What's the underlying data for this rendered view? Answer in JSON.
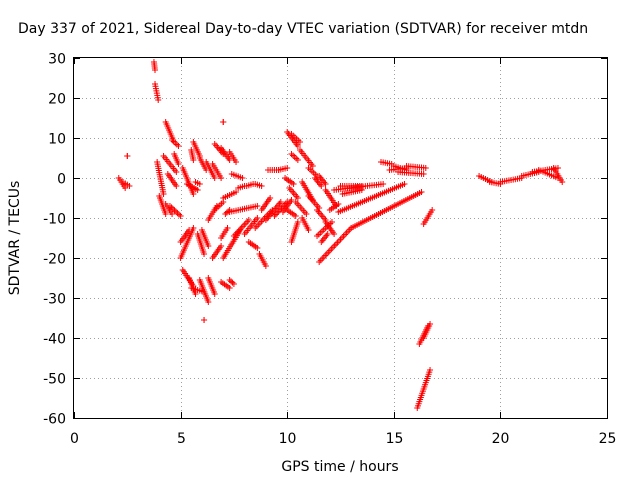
{
  "chart_data": {
    "type": "scatter",
    "title": "Day 337 of 2021, Sidereal Day-to-day VTEC variation (SDTVAR) for receiver mtdn",
    "xlabel": "GPS time / hours",
    "ylabel": "SDTVAR / TECUs",
    "xlim": [
      0,
      25
    ],
    "ylim": [
      -60,
      30
    ],
    "xticks": [
      "0",
      "5",
      "10",
      "15",
      "20",
      "25"
    ],
    "yticks": [
      "30",
      "20",
      "10",
      "0",
      "-10",
      "-20",
      "-30",
      "-40",
      "-50",
      "-60"
    ],
    "grid": true,
    "marker": "+",
    "color": "#ff0000",
    "tracks": [
      [
        [
          2.1,
          0.0
        ],
        [
          2.4,
          -2.5
        ]
      ],
      [
        [
          2.3,
          -1.0
        ],
        [
          2.6,
          -2.0
        ]
      ],
      [
        [
          2.5,
          5.5
        ],
        [
          2.5,
          5.5
        ]
      ],
      [
        [
          3.75,
          29
        ],
        [
          3.8,
          27
        ]
      ],
      [
        [
          3.8,
          23.5
        ],
        [
          3.95,
          19.5
        ]
      ],
      [
        [
          4.3,
          14
        ],
        [
          4.65,
          9.5
        ]
      ],
      [
        [
          4.6,
          9.5
        ],
        [
          4.9,
          8.0
        ]
      ],
      [
        [
          3.9,
          4.0
        ],
        [
          4.2,
          -4.0
        ]
      ],
      [
        [
          4.0,
          -4.5
        ],
        [
          4.3,
          -9.0
        ]
      ],
      [
        [
          4.2,
          5.5
        ],
        [
          4.8,
          1.5
        ]
      ],
      [
        [
          4.5,
          -7.0
        ],
        [
          5.0,
          -9.5
        ]
      ],
      [
        [
          4.3,
          -6.5
        ],
        [
          4.6,
          -9.0
        ]
      ],
      [
        [
          4.7,
          6.0
        ],
        [
          4.9,
          3.5
        ]
      ],
      [
        [
          4.4,
          1.0
        ],
        [
          4.8,
          -2.0
        ]
      ],
      [
        [
          5.6,
          -12.5
        ],
        [
          5.0,
          -20.0
        ]
      ],
      [
        [
          5.4,
          -13.0
        ],
        [
          5.0,
          -16.0
        ]
      ],
      [
        [
          5.1,
          -23.0
        ],
        [
          5.6,
          -27.0
        ]
      ],
      [
        [
          5.4,
          -25.0
        ],
        [
          5.7,
          -29.0
        ]
      ],
      [
        [
          5.5,
          -27.5
        ],
        [
          6.1,
          -28.5
        ]
      ],
      [
        [
          5.9,
          -25.5
        ],
        [
          6.3,
          -31.0
        ]
      ],
      [
        [
          5.8,
          -14.0
        ],
        [
          6.1,
          -19.0
        ]
      ],
      [
        [
          6.0,
          -13.0
        ],
        [
          6.3,
          -17.0
        ]
      ],
      [
        [
          6.3,
          -25.0
        ],
        [
          6.6,
          -29.0
        ]
      ],
      [
        [
          6.1,
          -35.5
        ],
        [
          6.1,
          -35.5
        ]
      ],
      [
        [
          5.6,
          9.0
        ],
        [
          5.9,
          5.5
        ]
      ],
      [
        [
          5.5,
          7.0
        ],
        [
          5.6,
          4.5
        ]
      ],
      [
        [
          5.9,
          5.0
        ],
        [
          6.2,
          2.0
        ]
      ],
      [
        [
          6.2,
          4.0
        ],
        [
          6.6,
          0.0
        ]
      ],
      [
        [
          6.5,
          3.5
        ],
        [
          6.9,
          0.0
        ]
      ],
      [
        [
          5.1,
          2.5
        ],
        [
          5.6,
          -4.0
        ]
      ],
      [
        [
          5.3,
          -1.5
        ],
        [
          5.8,
          -3.0
        ]
      ],
      [
        [
          5.7,
          -1.0
        ],
        [
          5.9,
          -1.5
        ]
      ],
      [
        [
          6.3,
          -10.5
        ],
        [
          6.7,
          -7.0
        ]
      ],
      [
        [
          6.6,
          -8.0
        ],
        [
          7.0,
          -6.0
        ]
      ],
      [
        [
          7.0,
          -5.0
        ],
        [
          7.6,
          -3.5
        ]
      ],
      [
        [
          7.7,
          -2.5
        ],
        [
          8.0,
          -2.0
        ]
      ],
      [
        [
          7.1,
          -9.0
        ],
        [
          7.3,
          -8.0
        ]
      ],
      [
        [
          6.5,
          -20.0
        ],
        [
          6.9,
          -17.0
        ]
      ],
      [
        [
          6.9,
          -15.0
        ],
        [
          7.2,
          -12.5
        ]
      ],
      [
        [
          7.0,
          -20.0
        ],
        [
          7.8,
          -13.0
        ]
      ],
      [
        [
          7.5,
          -14.5
        ],
        [
          8.2,
          -10.5
        ]
      ],
      [
        [
          7.3,
          -8.5
        ],
        [
          8.6,
          -7.0
        ]
      ],
      [
        [
          8.0,
          -14.0
        ],
        [
          8.6,
          -10.0
        ]
      ],
      [
        [
          8.5,
          -12.5
        ],
        [
          9.3,
          -8.0
        ]
      ],
      [
        [
          8.8,
          -8.0
        ],
        [
          9.2,
          -5.0
        ]
      ],
      [
        [
          9.0,
          -10.5
        ],
        [
          9.7,
          -6.0
        ]
      ],
      [
        [
          9.4,
          -9.5
        ],
        [
          10.0,
          -6.0
        ]
      ],
      [
        [
          9.8,
          -8.5
        ],
        [
          10.2,
          -5.5
        ]
      ],
      [
        [
          6.9,
          -26.0
        ],
        [
          7.3,
          -27.5
        ]
      ],
      [
        [
          7.3,
          -25.5
        ],
        [
          7.5,
          -26.5
        ]
      ],
      [
        [
          6.6,
          8.5
        ],
        [
          7.0,
          6.0
        ]
      ],
      [
        [
          6.9,
          7.5
        ],
        [
          7.3,
          4.5
        ]
      ],
      [
        [
          7.3,
          6.5
        ],
        [
          7.6,
          4.0
        ]
      ],
      [
        [
          7.0,
          14.0
        ],
        [
          7.0,
          14.0
        ]
      ],
      [
        [
          7.4,
          1.0
        ],
        [
          7.9,
          0.0
        ]
      ],
      [
        [
          8.1,
          -2.0
        ],
        [
          8.4,
          -1.5
        ]
      ],
      [
        [
          8.5,
          -1.5
        ],
        [
          8.8,
          -2.0
        ]
      ],
      [
        [
          8.7,
          -19.0
        ],
        [
          9.0,
          -22.0
        ]
      ],
      [
        [
          8.2,
          -16.0
        ],
        [
          8.6,
          -17.5
        ]
      ],
      [
        [
          9.1,
          2.0
        ],
        [
          9.6,
          2.0
        ]
      ],
      [
        [
          9.6,
          2.0
        ],
        [
          10.0,
          2.5
        ]
      ],
      [
        [
          10.0,
          11.5
        ],
        [
          10.5,
          8.0
        ]
      ],
      [
        [
          10.2,
          11.0
        ],
        [
          10.6,
          9.0
        ]
      ],
      [
        [
          10.2,
          6.0
        ],
        [
          10.5,
          4.5
        ]
      ],
      [
        [
          9.9,
          0.0
        ],
        [
          10.3,
          -1.5
        ]
      ],
      [
        [
          10.1,
          -2.5
        ],
        [
          10.5,
          -5.0
        ]
      ],
      [
        [
          10.4,
          -6.0
        ],
        [
          10.9,
          -9.0
        ]
      ],
      [
        [
          10.0,
          -8.0
        ],
        [
          10.4,
          -9.5
        ]
      ],
      [
        [
          10.5,
          -11.0
        ],
        [
          10.2,
          -16.0
        ]
      ],
      [
        [
          10.7,
          -10.0
        ],
        [
          11.0,
          -13.0
        ]
      ],
      [
        [
          10.6,
          7.0
        ],
        [
          11.2,
          3.0
        ]
      ],
      [
        [
          11.0,
          2.5
        ],
        [
          11.4,
          0.5
        ]
      ],
      [
        [
          11.3,
          0.0
        ],
        [
          11.6,
          -2.0
        ]
      ],
      [
        [
          10.7,
          -1.0
        ],
        [
          11.2,
          -5.5
        ]
      ],
      [
        [
          11.0,
          -4.5
        ],
        [
          11.5,
          -7.5
        ]
      ],
      [
        [
          11.4,
          -8.0
        ],
        [
          11.8,
          -10.5
        ]
      ],
      [
        [
          11.8,
          -11.0
        ],
        [
          12.2,
          -14.0
        ]
      ],
      [
        [
          11.4,
          -14.5
        ],
        [
          12.1,
          -11.0
        ]
      ],
      [
        [
          11.6,
          -16.0
        ],
        [
          11.9,
          -14.0
        ]
      ],
      [
        [
          11.5,
          0.5
        ],
        [
          11.8,
          -1.5
        ]
      ],
      [
        [
          11.8,
          -3.0
        ],
        [
          12.3,
          -7.0
        ]
      ],
      [
        [
          12.0,
          -8.0
        ],
        [
          12.4,
          -6.5
        ]
      ],
      [
        [
          11.5,
          -21.0
        ],
        [
          13.0,
          -12.5
        ]
      ],
      [
        [
          13.0,
          -12.5
        ],
        [
          16.3,
          -3.5
        ]
      ],
      [
        [
          12.4,
          -8.5
        ],
        [
          15.5,
          -1.5
        ]
      ],
      [
        [
          12.2,
          -3.0
        ],
        [
          14.5,
          -1.5
        ]
      ],
      [
        [
          12.6,
          -4.0
        ],
        [
          13.5,
          -3.0
        ]
      ],
      [
        [
          12.5,
          -2.0
        ],
        [
          13.5,
          -2.0
        ]
      ],
      [
        [
          14.4,
          4.0
        ],
        [
          14.9,
          3.5
        ]
      ],
      [
        [
          14.8,
          2.0
        ],
        [
          15.6,
          2.5
        ]
      ],
      [
        [
          15.0,
          3.0
        ],
        [
          15.6,
          2.0
        ]
      ],
      [
        [
          15.6,
          3.0
        ],
        [
          16.5,
          2.5
        ]
      ],
      [
        [
          15.2,
          1.5
        ],
        [
          16.4,
          1.0
        ]
      ],
      [
        [
          16.2,
          -41.5
        ],
        [
          16.6,
          -37.0
        ]
      ],
      [
        [
          16.4,
          -40.0
        ],
        [
          16.7,
          -36.5
        ]
      ],
      [
        [
          16.1,
          -57.5
        ],
        [
          16.7,
          -48.0
        ]
      ],
      [
        [
          16.4,
          -11.5
        ],
        [
          16.8,
          -8.0
        ]
      ],
      [
        [
          19.0,
          0.5
        ],
        [
          19.6,
          -1.0
        ]
      ],
      [
        [
          19.5,
          -1.0
        ],
        [
          20.0,
          -1.5
        ]
      ],
      [
        [
          20.0,
          -1.0
        ],
        [
          21.0,
          0.0
        ]
      ],
      [
        [
          21.0,
          0.5
        ],
        [
          21.8,
          1.5
        ]
      ],
      [
        [
          21.5,
          1.5
        ],
        [
          22.7,
          2.5
        ]
      ],
      [
        [
          22.5,
          2.5
        ],
        [
          22.9,
          -1.0
        ]
      ],
      [
        [
          21.8,
          2.0
        ],
        [
          22.7,
          0.0
        ]
      ]
    ]
  }
}
